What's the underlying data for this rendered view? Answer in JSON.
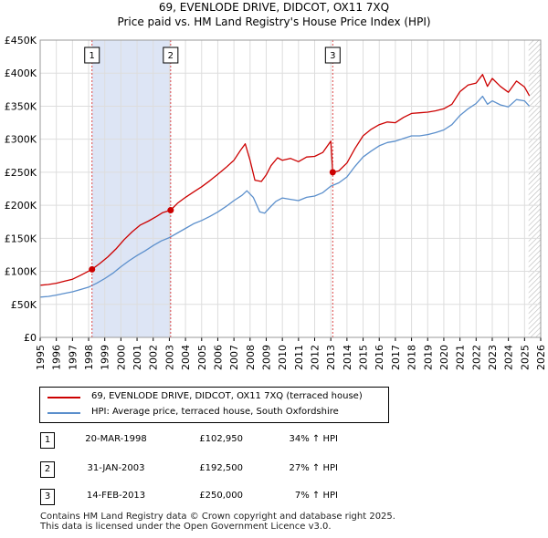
{
  "chart_data": {
    "type": "line",
    "title": "69, EVENLODE DRIVE, DIDCOT, OX11 7XQ",
    "subtitle": "Price paid vs. HM Land Registry's House Price Index (HPI)",
    "y_ticks": [
      {
        "value": 0,
        "label": "£0"
      },
      {
        "value": 50000,
        "label": "£50K"
      },
      {
        "value": 100000,
        "label": "£100K"
      },
      {
        "value": 150000,
        "label": "£150K"
      },
      {
        "value": 200000,
        "label": "£200K"
      },
      {
        "value": 250000,
        "label": "£250K"
      },
      {
        "value": 300000,
        "label": "£300K"
      },
      {
        "value": 350000,
        "label": "£350K"
      },
      {
        "value": 400000,
        "label": "£400K"
      },
      {
        "value": 450000,
        "label": "£450K"
      }
    ],
    "ylim": [
      0,
      450000
    ],
    "xlim": [
      1995,
      2026
    ],
    "x_ticks": [
      1995,
      1996,
      1997,
      1998,
      1999,
      2000,
      2001,
      2002,
      2003,
      2004,
      2005,
      2006,
      2007,
      2008,
      2009,
      2010,
      2011,
      2012,
      2013,
      2014,
      2015,
      2016,
      2017,
      2018,
      2019,
      2020,
      2021,
      2022,
      2023,
      2024,
      2025,
      2026
    ],
    "shaded_regions": [
      [
        1998.21,
        2003.08
      ]
    ],
    "hatched_region_start": 2025.25,
    "series": [
      {
        "name": "69, EVENLODE DRIVE, DIDCOT, OX11 7XQ (terraced house)",
        "color": "#cc0000",
        "x": [
          1995.0,
          1995.5,
          1996.0,
          1996.5,
          1997.0,
          1997.5,
          1998.21,
          1998.7,
          1999.2,
          1999.7,
          2000.2,
          2000.7,
          2001.2,
          2001.7,
          2002.2,
          2002.6,
          2003.08,
          2003.5,
          2004.0,
          2004.5,
          2005.0,
          2005.5,
          2006.0,
          2006.5,
          2007.0,
          2007.4,
          2007.7,
          2008.0,
          2008.3,
          2008.7,
          2009.0,
          2009.3,
          2009.7,
          2010.0,
          2010.5,
          2011.0,
          2011.5,
          2012.0,
          2012.5,
          2013.0,
          2013.12,
          2013.5,
          2014.0,
          2014.5,
          2015.0,
          2015.5,
          2016.0,
          2016.5,
          2017.0,
          2017.5,
          2018.0,
          2018.5,
          2019.0,
          2019.5,
          2020.0,
          2020.5,
          2021.0,
          2021.5,
          2022.0,
          2022.4,
          2022.7,
          2023.0,
          2023.5,
          2024.0,
          2024.5,
          2025.0,
          2025.3
        ],
        "y": [
          79000,
          80000,
          82000,
          85000,
          88000,
          94000,
          102950,
          112000,
          122000,
          134000,
          148000,
          160000,
          170000,
          176000,
          183000,
          189000,
          192500,
          203000,
          212000,
          220000,
          228000,
          237000,
          247000,
          257000,
          268000,
          283000,
          293000,
          268000,
          238000,
          236000,
          246000,
          260000,
          272000,
          268000,
          271000,
          266000,
          273000,
          274000,
          280000,
          297000,
          250000,
          252000,
          264000,
          286000,
          305000,
          315000,
          322000,
          326000,
          325000,
          333000,
          339000,
          340000,
          341000,
          343000,
          346000,
          353000,
          372000,
          382000,
          385000,
          398000,
          380000,
          392000,
          380000,
          371000,
          388000,
          379000,
          366000
        ]
      },
      {
        "name": "HPI: Average price, terraced house, South Oxfordshire",
        "color": "#5b8fcc",
        "x": [
          1995.0,
          1995.5,
          1996.0,
          1996.5,
          1997.0,
          1997.5,
          1998.0,
          1998.5,
          1999.0,
          1999.5,
          2000.0,
          2000.5,
          2001.0,
          2001.5,
          2002.0,
          2002.5,
          2003.0,
          2003.5,
          2004.0,
          2004.5,
          2005.0,
          2005.5,
          2006.0,
          2006.5,
          2007.0,
          2007.5,
          2007.8,
          2008.2,
          2008.6,
          2008.9,
          2009.2,
          2009.6,
          2010.0,
          2010.5,
          2011.0,
          2011.5,
          2012.0,
          2012.5,
          2013.0,
          2013.5,
          2014.0,
          2014.5,
          2015.0,
          2015.5,
          2016.0,
          2016.5,
          2017.0,
          2017.5,
          2018.0,
          2018.5,
          2019.0,
          2019.5,
          2020.0,
          2020.5,
          2021.0,
          2021.5,
          2022.0,
          2022.4,
          2022.7,
          2023.0,
          2023.5,
          2024.0,
          2024.5,
          2025.0,
          2025.3
        ],
        "y": [
          61000,
          62000,
          64000,
          66500,
          69000,
          72500,
          76000,
          82000,
          89000,
          97000,
          107000,
          116000,
          124000,
          131000,
          139000,
          146000,
          151000,
          158000,
          165000,
          172000,
          177000,
          183000,
          190000,
          198000,
          207000,
          215000,
          222000,
          212000,
          190000,
          188000,
          196000,
          206000,
          211000,
          209000,
          207000,
          212000,
          214000,
          219000,
          229000,
          234000,
          243000,
          259000,
          273000,
          282000,
          290000,
          295000,
          297000,
          301000,
          305000,
          305000,
          307000,
          310000,
          314000,
          322000,
          336000,
          346000,
          354000,
          365000,
          353000,
          358000,
          352000,
          349000,
          360000,
          358000,
          350000
        ]
      }
    ],
    "sales": [
      {
        "label": "1",
        "x": 1998.21,
        "y": 102950,
        "date": "20-MAR-1998",
        "price": "£102,950",
        "hpi": "34% ↑ HPI"
      },
      {
        "label": "2",
        "x": 2003.08,
        "y": 192500,
        "date": "31-JAN-2003",
        "price": "£192,500",
        "hpi": "27% ↑ HPI"
      },
      {
        "label": "3",
        "x": 2013.12,
        "y": 250000,
        "date": "14-FEB-2013",
        "price": "£250,000",
        "hpi": "7% ↑ HPI"
      }
    ]
  },
  "legend": {
    "property_label": "69, EVENLODE DRIVE, DIDCOT, OX11 7XQ (terraced house)",
    "hpi_label": "HPI: Average price, terraced house, South Oxfordshire",
    "property_color": "#cc0000",
    "hpi_color": "#5b8fcc"
  },
  "footer": {
    "line1": "Contains HM Land Registry data © Crown copyright and database right 2025.",
    "line2": "This data is licensed under the Open Government Licence v3.0."
  }
}
